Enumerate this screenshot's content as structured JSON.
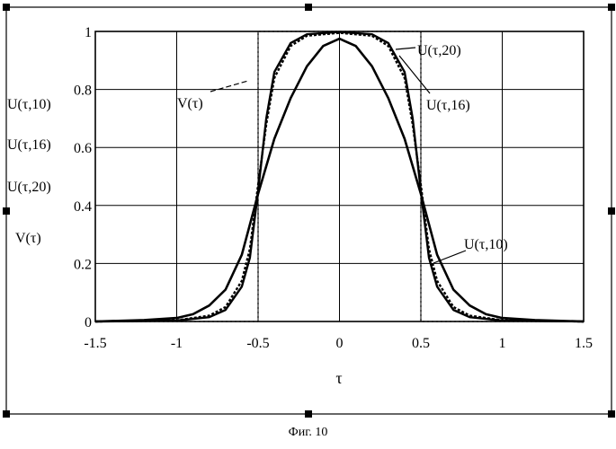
{
  "chart_data": {
    "type": "line",
    "xlabel": "τ",
    "xlim": [
      -1.5,
      1.5
    ],
    "ylim": [
      0,
      1
    ],
    "x_ticks": [
      -1.5,
      -1,
      -0.5,
      0,
      0.5,
      1,
      1.5
    ],
    "x_tick_labels": [
      "-1.5",
      "-1",
      "-0.5",
      "0",
      "0.5",
      "1",
      "1.5"
    ],
    "y_ticks": [
      0,
      0.2,
      0.4,
      0.6,
      0.8,
      1
    ],
    "y_tick_labels": [
      "0",
      "0.2",
      "0.4",
      "0.6",
      "0.8",
      "1"
    ],
    "grid": true,
    "ylabels_stack": [
      "U(τ,10)",
      "U(τ,16)",
      "U(τ,20)",
      "V(τ)"
    ],
    "series": [
      {
        "name": "V(τ)",
        "style": "dotted",
        "x": [
          -1.5,
          -0.5,
          -0.5,
          0.5,
          0.5,
          1.5
        ],
        "y": [
          0,
          0,
          1,
          1,
          0,
          0
        ]
      },
      {
        "name": "U(τ,10)",
        "style": "solid",
        "x": [
          -1.5,
          -1.2,
          -1.0,
          -0.9,
          -0.8,
          -0.7,
          -0.6,
          -0.5,
          -0.4,
          -0.3,
          -0.2,
          -0.1,
          0,
          0.1,
          0.2,
          0.3,
          0.4,
          0.5,
          0.6,
          0.7,
          0.8,
          0.9,
          1.0,
          1.2,
          1.5
        ],
        "y": [
          0.0,
          0.005,
          0.012,
          0.025,
          0.055,
          0.11,
          0.23,
          0.44,
          0.63,
          0.77,
          0.88,
          0.95,
          0.975,
          0.95,
          0.88,
          0.77,
          0.63,
          0.44,
          0.23,
          0.11,
          0.055,
          0.025,
          0.012,
          0.005,
          0.0
        ]
      },
      {
        "name": "U(τ,16)",
        "style": "dashed",
        "x": [
          -1.5,
          -1.0,
          -0.8,
          -0.7,
          -0.6,
          -0.55,
          -0.5,
          -0.45,
          -0.4,
          -0.3,
          -0.2,
          0,
          0.2,
          0.3,
          0.4,
          0.45,
          0.5,
          0.55,
          0.6,
          0.7,
          0.8,
          1.0,
          1.5
        ],
        "y": [
          0.0,
          0.004,
          0.02,
          0.05,
          0.14,
          0.25,
          0.47,
          0.68,
          0.84,
          0.95,
          0.985,
          0.995,
          0.985,
          0.95,
          0.84,
          0.68,
          0.47,
          0.25,
          0.14,
          0.05,
          0.02,
          0.004,
          0.0
        ]
      },
      {
        "name": "U(τ,20)",
        "style": "solid",
        "x": [
          -1.5,
          -1.0,
          -0.8,
          -0.7,
          -0.6,
          -0.55,
          -0.5,
          -0.45,
          -0.4,
          -0.3,
          -0.2,
          0,
          0.2,
          0.3,
          0.4,
          0.45,
          0.5,
          0.55,
          0.6,
          0.7,
          0.8,
          1.0,
          1.5
        ],
        "y": [
          0.0,
          0.003,
          0.015,
          0.04,
          0.12,
          0.22,
          0.45,
          0.7,
          0.86,
          0.96,
          0.99,
          0.998,
          0.99,
          0.96,
          0.86,
          0.7,
          0.45,
          0.22,
          0.12,
          0.04,
          0.015,
          0.003,
          0.0
        ]
      }
    ],
    "annotations": [
      "V(τ)",
      "U(τ,20)",
      "U(τ,16)",
      "U(τ,10)"
    ]
  },
  "caption": "Фиг. 10"
}
